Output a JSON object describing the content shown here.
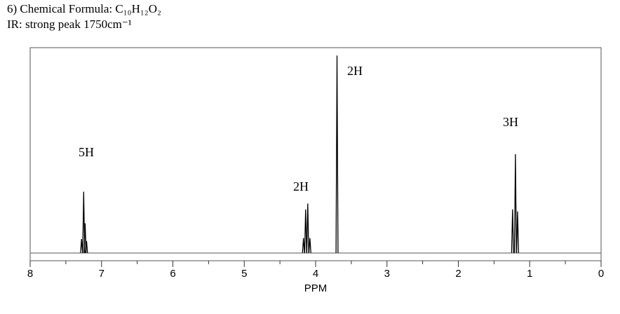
{
  "chart_data": {
    "type": "spectrum",
    "title": "6) Chemical Formula: C₁₀H₁₂O₂",
    "subtitle": "IR: strong peak 1750cm⁻¹",
    "x_label": "PPM",
    "x": [
      7.28,
      7.25,
      7.23,
      7.21,
      4.17,
      4.14,
      4.11,
      4.08,
      3.7,
      1.24,
      1.2,
      1.17
    ],
    "values": [
      7,
      31,
      15,
      6,
      7.5,
      22,
      25,
      7.5,
      100,
      22,
      50,
      21
    ],
    "color": "#000000",
    "xlim": [
      8,
      0
    ],
    "xticks": [
      8,
      7,
      6,
      5,
      4,
      3,
      2,
      1,
      0
    ],
    "xticks_minor": [
      7.5,
      6.5,
      5.5,
      4.5,
      3.5,
      2.5,
      1.5,
      0.5
    ],
    "ylim": [
      -4,
      104
    ],
    "annotations": [
      "5H",
      "2H",
      "2H",
      "3H"
    ]
  }
}
